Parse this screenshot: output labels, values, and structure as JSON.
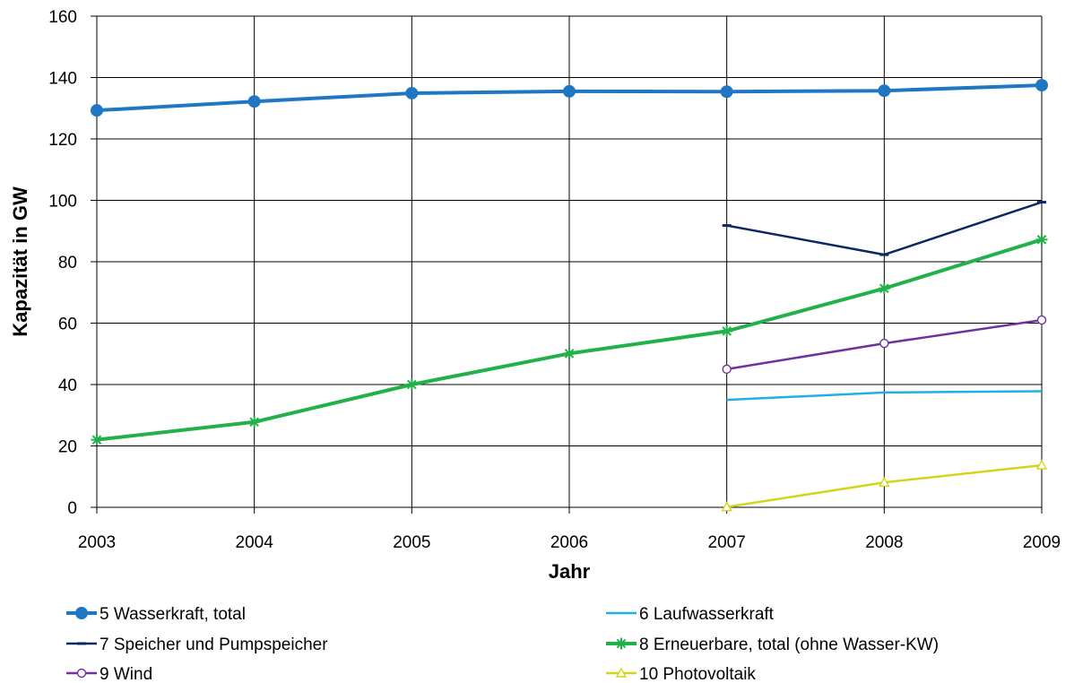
{
  "chart_data": {
    "type": "line",
    "xlabel": "Jahr",
    "ylabel": "Kapazität in GW",
    "ylim": [
      0,
      160
    ],
    "yticks": [
      0,
      20,
      40,
      60,
      80,
      100,
      120,
      140,
      160
    ],
    "x": [
      2003,
      2004,
      2005,
      2006,
      2007,
      2008,
      2009
    ],
    "grid": true,
    "legend_position": "bottom",
    "series": [
      {
        "name": "5 Wasserkraft, total",
        "x": [
          2003,
          2004,
          2005,
          2006,
          2007,
          2008,
          2009
        ],
        "values": [
          129.3,
          132.2,
          134.9,
          135.5,
          135.4,
          135.7,
          137.5
        ],
        "color": "#1f77c4",
        "marker": "circle-filled",
        "width": 4
      },
      {
        "name": "6 Laufwasserkraft",
        "x": [
          2007,
          2008,
          2009
        ],
        "values": [
          35.0,
          37.4,
          37.8
        ],
        "color": "#1fb0e6",
        "marker": "none",
        "width": 2.5
      },
      {
        "name": "7 Speicher und Pumpspeicher",
        "x": [
          2007,
          2008,
          2009
        ],
        "values": [
          91.8,
          82.3,
          99.4
        ],
        "color": "#0d2860",
        "marker": "dash",
        "width": 2.5
      },
      {
        "name": "8 Erneuerbare, total (ohne Wasser-KW)",
        "x": [
          2003,
          2004,
          2005,
          2006,
          2007,
          2008,
          2009
        ],
        "values": [
          22.0,
          27.8,
          40.0,
          50.1,
          57.4,
          71.3,
          87.2
        ],
        "color": "#22b04b",
        "marker": "star",
        "width": 4
      },
      {
        "name": "9 Wind",
        "x": [
          2007,
          2008,
          2009
        ],
        "values": [
          45.0,
          53.4,
          61.0
        ],
        "color": "#7030a0",
        "marker": "circle-open",
        "width": 2.5
      },
      {
        "name": "10 Photovoltaik",
        "x": [
          2007,
          2008,
          2009
        ],
        "values": [
          0.1,
          8.1,
          13.7
        ],
        "color": "#d4d41c",
        "marker": "triangle-open",
        "width": 2.5
      }
    ]
  }
}
